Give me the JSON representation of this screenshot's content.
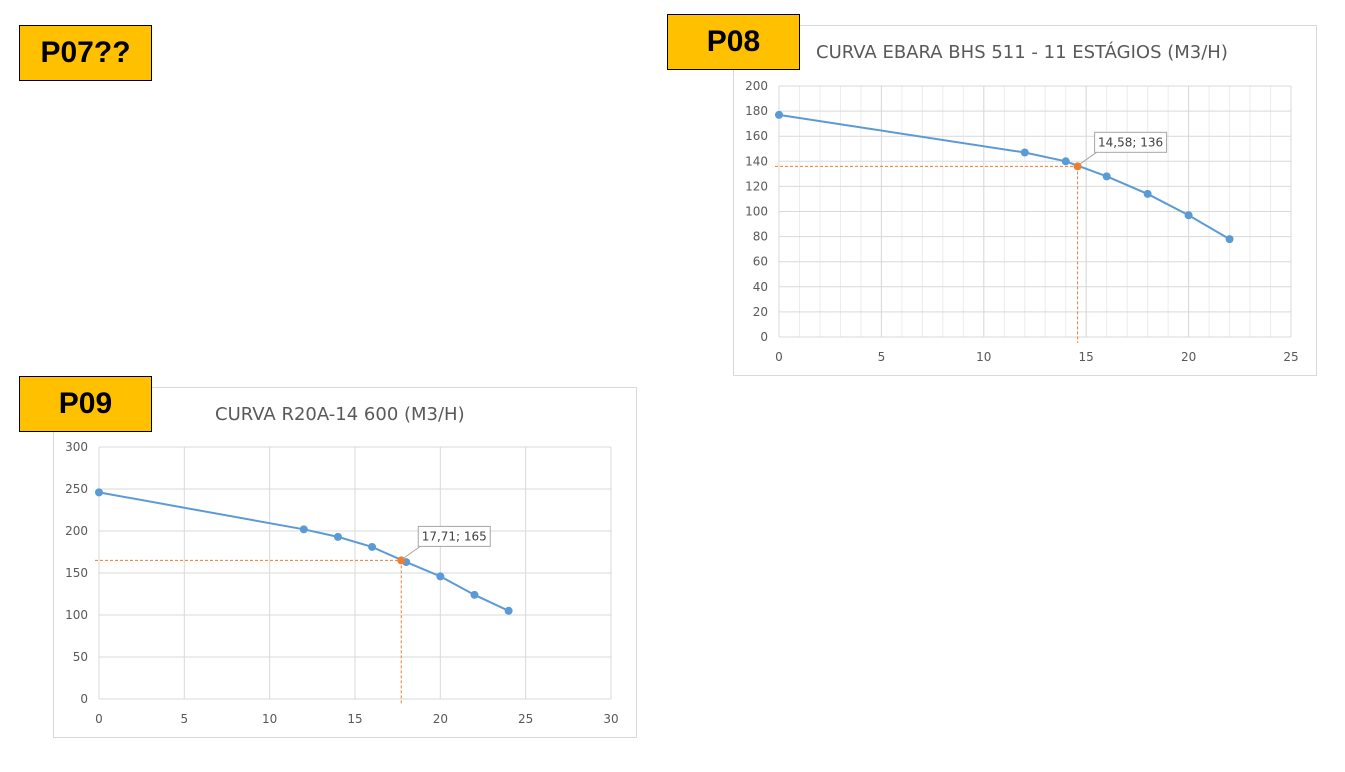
{
  "labels": {
    "p07": "P07??",
    "p08": "P08",
    "p09": "P09"
  },
  "colors": {
    "series": "#5B9BD5",
    "highlight": "#ED7D31",
    "grid": "#d9d9d9",
    "label_bg": "#FFC000"
  },
  "chart_data": [
    {
      "id": "p08",
      "type": "line",
      "title": "CURVA EBARA BHS 511 - 11 ESTÁGIOS (M3/H)",
      "xlim": [
        0,
        25
      ],
      "ylim": [
        0,
        200
      ],
      "x_ticks": [
        0,
        5,
        10,
        15,
        20,
        25
      ],
      "y_ticks": [
        0,
        20,
        40,
        60,
        80,
        100,
        120,
        140,
        160,
        180,
        200
      ],
      "x_minor_step": 1,
      "grid": true,
      "series": [
        {
          "x": [
            0,
            12,
            14,
            16,
            18,
            20,
            22
          ],
          "y": [
            177,
            147,
            140,
            128,
            114,
            97,
            78
          ]
        }
      ],
      "highlight": {
        "x": 14.58,
        "y": 136,
        "label": "14,58; 136"
      }
    },
    {
      "id": "p09",
      "type": "line",
      "title": "CURVA R20A-14 600 (M3/H)",
      "xlim": [
        0,
        30
      ],
      "ylim": [
        0,
        300
      ],
      "x_ticks": [
        0,
        5,
        10,
        15,
        20,
        25,
        30
      ],
      "y_ticks": [
        0,
        50,
        100,
        150,
        200,
        250,
        300
      ],
      "x_minor_step": null,
      "grid": true,
      "series": [
        {
          "x": [
            0,
            12,
            14,
            16,
            18,
            20,
            22,
            24
          ],
          "y": [
            246,
            202,
            193,
            181,
            163,
            146,
            124,
            105
          ]
        }
      ],
      "highlight": {
        "x": 17.71,
        "y": 165,
        "label": "17,71; 165"
      }
    }
  ]
}
